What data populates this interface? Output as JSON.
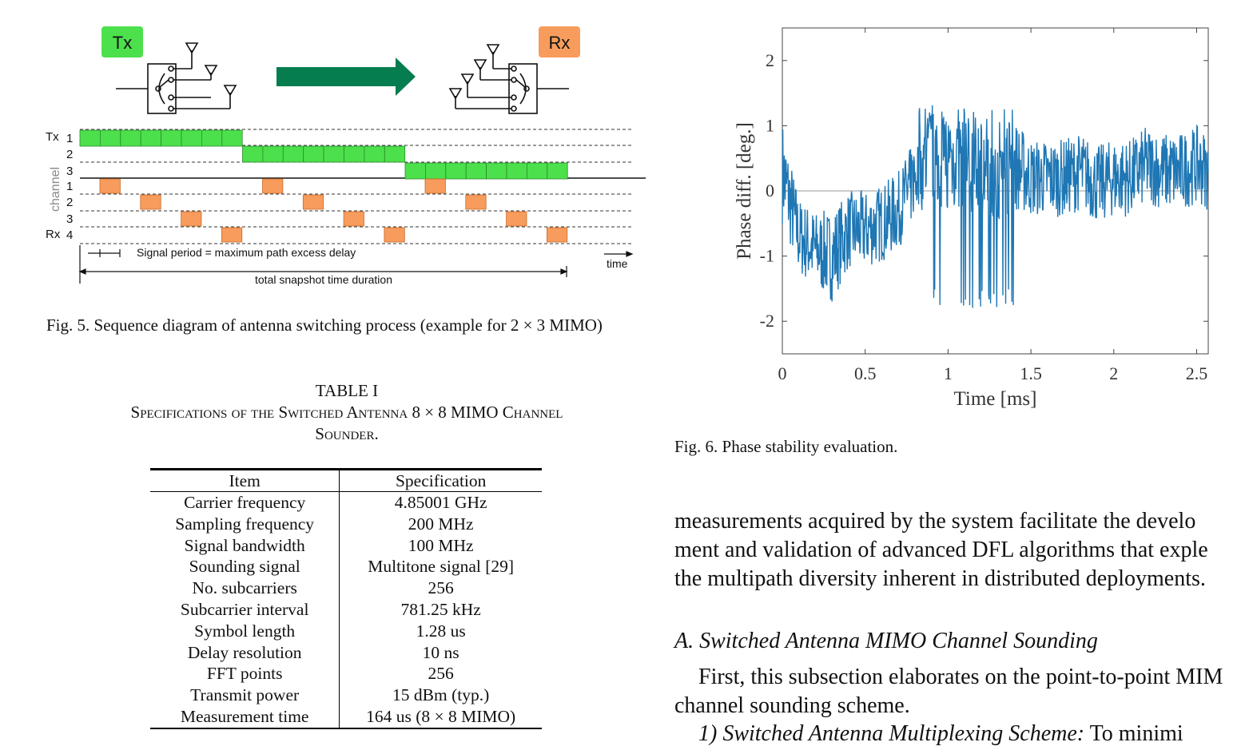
{
  "fig5": {
    "tx_badge": "Tx",
    "rx_badge": "Rx",
    "tx_axis_label": "Tx",
    "rx_axis_label": "Rx",
    "channel_label": "channel",
    "tx_rows": [
      "1",
      "2",
      "3"
    ],
    "rx_rows": [
      "1",
      "2",
      "3",
      "4"
    ],
    "signal_period_label": "Signal period = maximum path excess delay",
    "time_label": "time",
    "total_label": "total snapshot time duration",
    "caption": "Fig. 5.   Sequence diagram of antenna switching process (example for 2 × 3 MIMO)",
    "colors": {
      "tx_green": "#4ce04c",
      "rx_orange": "#f79c5c",
      "arrow_green": "#067d4f",
      "badge_green": "#4ce04c",
      "badge_orange": "#f79c5c"
    }
  },
  "table1": {
    "label": "TABLE I",
    "title_line1": "Specifications of the Switched Antenna 8 × 8 MIMO Channel",
    "title_line2": "Sounder.",
    "headers": [
      "Item",
      "Specification"
    ],
    "rows": [
      [
        "Carrier frequency",
        "4.85001 GHz"
      ],
      [
        "Sampling frequency",
        "200 MHz"
      ],
      [
        "Signal bandwidth",
        "100 MHz"
      ],
      [
        "Sounding signal",
        "Multitone signal [29]"
      ],
      [
        "No. subcarriers",
        "256"
      ],
      [
        "Subcarrier interval",
        "781.25 kHz"
      ],
      [
        "Symbol length",
        "1.28 us"
      ],
      [
        "Delay resolution",
        "10 ns"
      ],
      [
        "FFT points",
        "256"
      ],
      [
        "Transmit power",
        "15 dBm (typ.)"
      ],
      [
        "Measurement time",
        "164 us (8 × 8 MIMO)"
      ]
    ]
  },
  "fig6": {
    "caption": "Fig. 6.   Phase stability evaluation."
  },
  "chart_data": {
    "type": "line",
    "xlabel": "Time [ms]",
    "ylabel": "Phase diff. [deg.]",
    "xlim": [
      0,
      2.57
    ],
    "ylim": [
      -2.5,
      2.5
    ],
    "xticks": [
      "0",
      "0.5",
      "1",
      "1.5",
      "2",
      "2.5"
    ],
    "yticks": [
      "2",
      "1",
      "0",
      "-1",
      "-2"
    ],
    "grid": false,
    "reference_line_y": 0,
    "series": [
      {
        "color": "#1f77b4",
        "x": [
          0,
          0.1,
          0.2,
          0.3,
          0.4,
          0.5,
          0.6,
          0.7,
          0.8,
          0.9,
          1.0,
          1.1,
          1.2,
          1.3,
          1.4,
          1.5,
          1.6,
          1.7,
          1.8,
          1.9,
          2.0,
          2.1,
          2.2,
          2.3,
          2.4,
          2.5,
          2.57
        ],
        "y": [
          0.3,
          -0.7,
          -0.9,
          -1.0,
          -0.6,
          -0.6,
          -0.5,
          -0.3,
          0.2,
          0.6,
          0.5,
          0.5,
          0.4,
          0.3,
          0.4,
          0.2,
          0.2,
          0.2,
          0.3,
          0.1,
          0.2,
          0.2,
          0.4,
          0.3,
          0.3,
          0.4,
          0.3
        ],
        "spread": [
          0.8,
          0.6,
          0.6,
          0.7,
          0.6,
          0.6,
          0.6,
          0.6,
          0.6,
          0.8,
          0.8,
          0.8,
          0.8,
          0.8,
          0.7,
          0.6,
          0.6,
          0.6,
          0.6,
          0.6,
          0.6,
          0.6,
          0.6,
          0.6,
          0.6,
          0.6,
          0.6
        ]
      }
    ]
  },
  "body": {
    "lines": [
      "measurements acquired by the system facilitate the develo",
      "ment and validation of advanced DFL algorithms that exple",
      "the multipath diversity inherent in distributed deployments."
    ],
    "section_heading": "A.  Switched Antenna MIMO Channel Sounding",
    "para_line1": "First, this subsection elaborates on the point-to-point MIM",
    "para_line2": "channel sounding scheme.",
    "subsection_label": "1) Switched Antenna Multiplexing Scheme:",
    "subsection_tail": "To minimi"
  }
}
